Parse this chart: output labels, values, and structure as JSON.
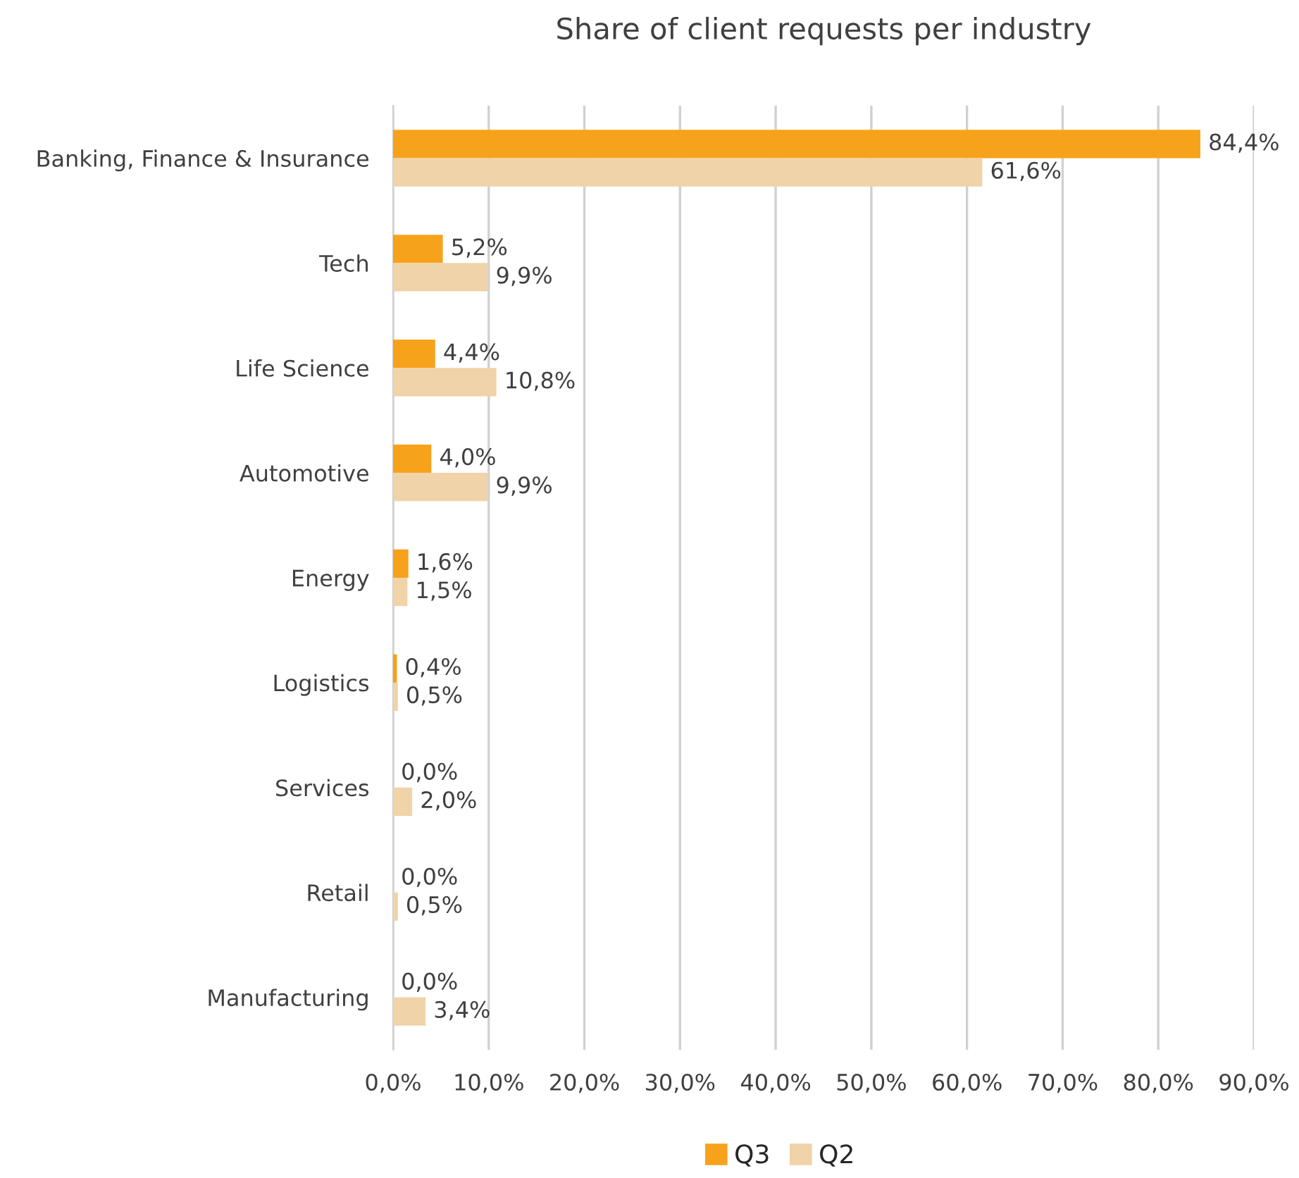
{
  "chart_data": {
    "type": "bar",
    "orientation": "horizontal",
    "title": "Share of client requests per industry",
    "categories": [
      "Banking, Finance & Insurance",
      "Tech",
      "Life Science",
      "Automotive",
      "Energy",
      "Logistics",
      "Services",
      "Retail",
      "Manufacturing"
    ],
    "series": [
      {
        "name": "Q3",
        "color": "#f7a21b",
        "values": [
          84.4,
          5.2,
          4.4,
          4.0,
          1.6,
          0.4,
          0.0,
          0.0,
          0.0
        ],
        "value_labels": [
          "84,4%",
          "5,2%",
          "4,4%",
          "4,0%",
          "1,6%",
          "0,4%",
          "0,0%",
          "0,0%",
          "0,0%"
        ]
      },
      {
        "name": "Q2",
        "color": "#f0d3a8",
        "values": [
          61.6,
          9.9,
          10.8,
          9.9,
          1.5,
          0.5,
          2.0,
          0.5,
          3.4
        ],
        "value_labels": [
          "61,6%",
          "9,9%",
          "10,8%",
          "9,9%",
          "1,5%",
          "0,5%",
          "2,0%",
          "0,5%",
          "3,4%"
        ]
      }
    ],
    "xlim": [
      0,
      90
    ],
    "xticks": [
      {
        "value": 0,
        "label": "0,0%"
      },
      {
        "value": 10,
        "label": "10,0%"
      },
      {
        "value": 20,
        "label": "20,0%"
      },
      {
        "value": 30,
        "label": "30,0%"
      },
      {
        "value": 40,
        "label": "40,0%"
      },
      {
        "value": 50,
        "label": "50,0%"
      },
      {
        "value": 60,
        "label": "60,0%"
      },
      {
        "value": 70,
        "label": "70,0%"
      },
      {
        "value": 80,
        "label": "80,0%"
      },
      {
        "value": 90,
        "label": "90,0%"
      }
    ],
    "grid": "x",
    "legend": "bottom"
  }
}
